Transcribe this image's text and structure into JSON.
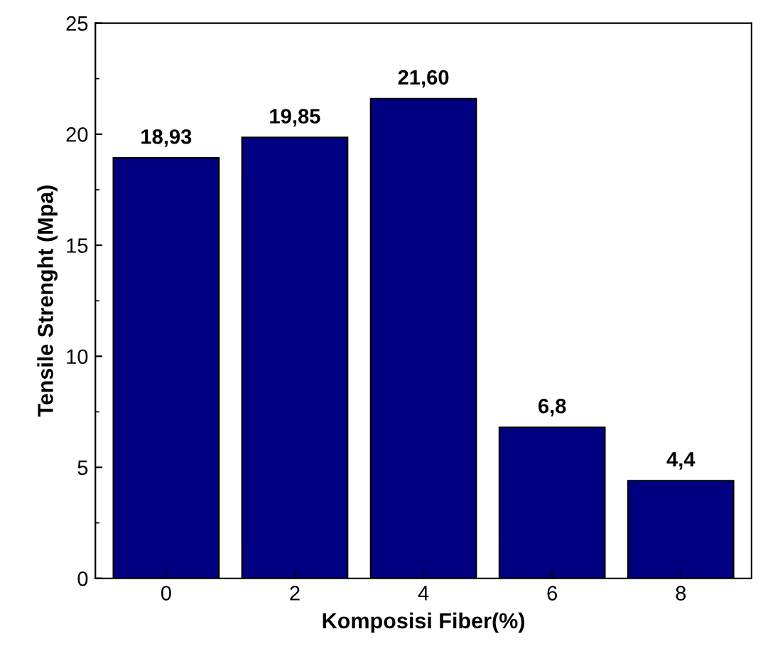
{
  "chart_data": {
    "type": "bar",
    "xlabel": "Komposisi Fiber(%)",
    "ylabel": "Tensile Strenght (Mpa)",
    "categories": [
      "0",
      "2",
      "4",
      "6",
      "8"
    ],
    "values": [
      18.93,
      19.85,
      21.6,
      6.8,
      4.4
    ],
    "value_labels": [
      "18,93",
      "19,85",
      "21,60",
      "6,8",
      "4,4"
    ],
    "color": "#000080",
    "ylim": [
      0,
      25
    ],
    "yticks": [
      0,
      5,
      10,
      15,
      20,
      25
    ],
    "grid": false
  }
}
